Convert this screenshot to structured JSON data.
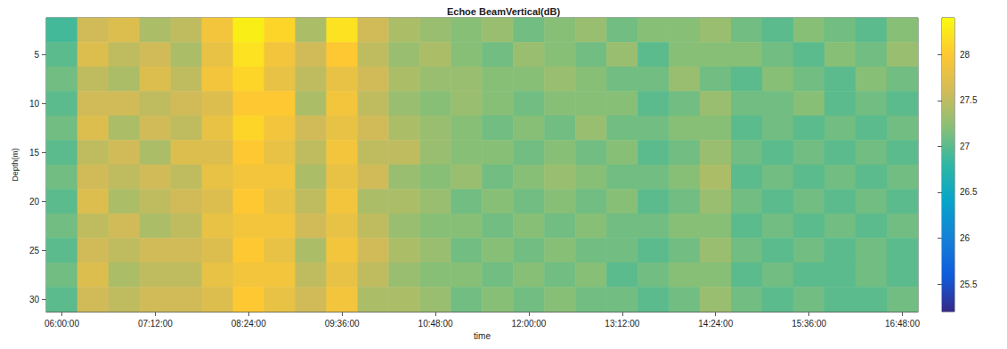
{
  "chart_data": {
    "type": "heatmap",
    "title": "Echoe BeamVertical(dB)",
    "x_label": "time",
    "y_label": "Depth(m)",
    "x": [
      "06:00:00",
      "06:24:00",
      "06:48:00",
      "07:12:00",
      "07:36:00",
      "08:00:00",
      "08:24:00",
      "08:48:00",
      "09:12:00",
      "09:36:00",
      "10:00:00",
      "10:24:00",
      "10:48:00",
      "11:12:00",
      "11:36:00",
      "12:00:00",
      "12:24:00",
      "12:48:00",
      "13:12:00",
      "13:36:00",
      "14:00:00",
      "14:24:00",
      "14:48:00",
      "15:12:00",
      "15:36:00",
      "16:00:00",
      "16:24:00",
      "16:48:00"
    ],
    "xticks": [
      "06:00:00",
      "07:12:00",
      "08:24:00",
      "09:36:00",
      "10:48:00",
      "12:00:00",
      "13:12:00",
      "14:24:00",
      "15:36:00",
      "16:48:00"
    ],
    "y": [
      2.5,
      5,
      7.5,
      10,
      12.5,
      15,
      17.5,
      20,
      22.5,
      25,
      27.5,
      30
    ],
    "yticks": [
      5,
      10,
      15,
      20,
      25,
      30
    ],
    "values": [
      [
        26.9,
        27.6,
        27.7,
        27.4,
        27.5,
        27.9,
        28.3,
        28.1,
        27.4,
        28.2,
        27.6,
        27.4,
        27.3,
        27.2,
        27.3,
        27.1,
        27.2,
        27.3,
        27.1,
        27.2,
        27.2,
        27.3,
        27.1,
        27.0,
        27.2,
        27.1,
        27.0,
        27.2
      ],
      [
        27.0,
        27.7,
        27.5,
        27.6,
        27.4,
        27.8,
        28.2,
        27.9,
        27.6,
        28.0,
        27.5,
        27.3,
        27.4,
        27.2,
        27.1,
        27.3,
        27.2,
        27.1,
        27.3,
        27.0,
        27.2,
        27.2,
        27.2,
        27.1,
        27.0,
        27.2,
        27.1,
        27.3
      ],
      [
        27.1,
        27.5,
        27.4,
        27.7,
        27.5,
        27.9,
        28.1,
        27.8,
        27.5,
        27.8,
        27.6,
        27.4,
        27.3,
        27.3,
        27.2,
        27.2,
        27.3,
        27.2,
        27.1,
        27.1,
        27.3,
        27.1,
        27.0,
        27.2,
        27.1,
        27.0,
        27.2,
        27.1
      ],
      [
        27.0,
        27.6,
        27.6,
        27.5,
        27.6,
        27.7,
        28.0,
        28.0,
        27.4,
        27.9,
        27.5,
        27.3,
        27.2,
        27.3,
        27.2,
        27.1,
        27.2,
        27.2,
        27.2,
        27.0,
        27.1,
        27.3,
        27.1,
        27.1,
        27.2,
        27.0,
        27.1,
        27.0
      ],
      [
        27.1,
        27.7,
        27.4,
        27.6,
        27.5,
        27.8,
        28.1,
        27.9,
        27.6,
        27.8,
        27.6,
        27.4,
        27.3,
        27.2,
        27.1,
        27.2,
        27.1,
        27.3,
        27.1,
        27.1,
        27.2,
        27.2,
        27.0,
        27.1,
        27.0,
        27.1,
        27.0,
        27.1
      ],
      [
        27.0,
        27.5,
        27.6,
        27.4,
        27.7,
        27.7,
        28.0,
        27.8,
        27.5,
        27.9,
        27.5,
        27.5,
        27.3,
        27.2,
        27.2,
        27.1,
        27.2,
        27.1,
        27.2,
        27.0,
        27.1,
        27.3,
        27.1,
        27.0,
        27.1,
        27.0,
        27.1,
        27.0
      ],
      [
        27.1,
        27.6,
        27.5,
        27.6,
        27.5,
        27.8,
        27.9,
        27.9,
        27.4,
        27.8,
        27.6,
        27.3,
        27.2,
        27.3,
        27.1,
        27.2,
        27.3,
        27.2,
        27.1,
        27.1,
        27.2,
        27.4,
        27.0,
        27.1,
        27.0,
        27.1,
        27.0,
        27.1
      ],
      [
        27.0,
        27.7,
        27.4,
        27.5,
        27.6,
        27.7,
        28.0,
        27.8,
        27.5,
        27.9,
        27.4,
        27.4,
        27.3,
        27.1,
        27.2,
        27.1,
        27.2,
        27.1,
        27.2,
        27.0,
        27.1,
        27.3,
        27.1,
        27.0,
        27.1,
        27.0,
        27.1,
        27.0
      ],
      [
        27.1,
        27.5,
        27.6,
        27.4,
        27.5,
        27.8,
        27.9,
        27.9,
        27.6,
        27.8,
        27.5,
        27.3,
        27.2,
        27.2,
        27.1,
        27.2,
        27.1,
        27.2,
        27.1,
        27.1,
        27.2,
        27.2,
        27.0,
        27.1,
        27.0,
        27.1,
        27.0,
        27.1
      ],
      [
        27.0,
        27.6,
        27.5,
        27.6,
        27.6,
        27.7,
        28.0,
        27.8,
        27.4,
        27.9,
        27.6,
        27.4,
        27.3,
        27.1,
        27.2,
        27.1,
        27.2,
        27.1,
        27.1,
        27.0,
        27.1,
        27.3,
        27.1,
        27.0,
        27.1,
        27.0,
        27.1,
        27.0
      ],
      [
        27.1,
        27.7,
        27.4,
        27.5,
        27.5,
        27.8,
        27.9,
        27.9,
        27.5,
        27.8,
        27.5,
        27.3,
        27.2,
        27.2,
        27.1,
        27.2,
        27.1,
        27.2,
        27.0,
        27.1,
        27.2,
        27.2,
        27.0,
        27.1,
        27.0,
        27.0,
        27.1,
        27.0
      ],
      [
        27.0,
        27.6,
        27.5,
        27.6,
        27.6,
        27.7,
        28.0,
        27.8,
        27.6,
        27.9,
        27.4,
        27.4,
        27.3,
        27.1,
        27.2,
        27.1,
        27.2,
        27.1,
        27.1,
        27.0,
        27.1,
        27.3,
        27.1,
        27.0,
        27.1,
        27.0,
        27.0,
        27.1
      ]
    ],
    "colorbar": {
      "range": [
        25.2,
        28.4
      ],
      "ticks": [
        25.5,
        26,
        26.5,
        27,
        27.5,
        28
      ]
    },
    "grid": false
  }
}
